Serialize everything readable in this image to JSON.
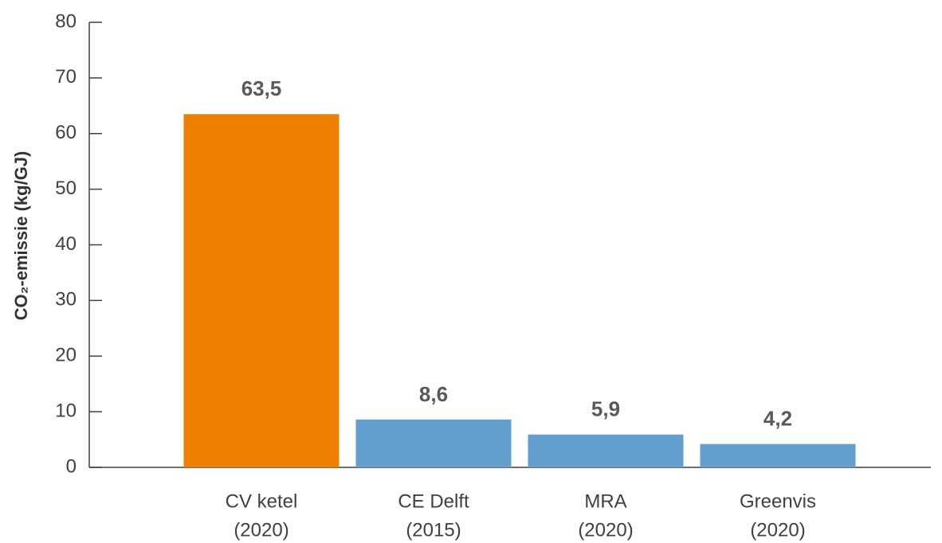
{
  "chart_data": {
    "type": "bar",
    "y_label": "CO₂-emissie (kg/GJ)",
    "categories": [
      [
        "CV ketel",
        "(2020)"
      ],
      [
        "CE Delft",
        "(2015)"
      ],
      [
        "MRA",
        "(2020)"
      ],
      [
        "Greenvis",
        "(2020)"
      ]
    ],
    "values": [
      63.5,
      8.6,
      5.9,
      4.2
    ],
    "value_labels": [
      "63,5",
      "8,6",
      "5,9",
      "4,2"
    ],
    "colors": [
      "#ed8000",
      "#629fcf",
      "#629fcf",
      "#629fcf"
    ],
    "ylim": [
      0,
      80
    ],
    "yticks": [
      0,
      10,
      20,
      30,
      40,
      50,
      60,
      70,
      80
    ]
  }
}
